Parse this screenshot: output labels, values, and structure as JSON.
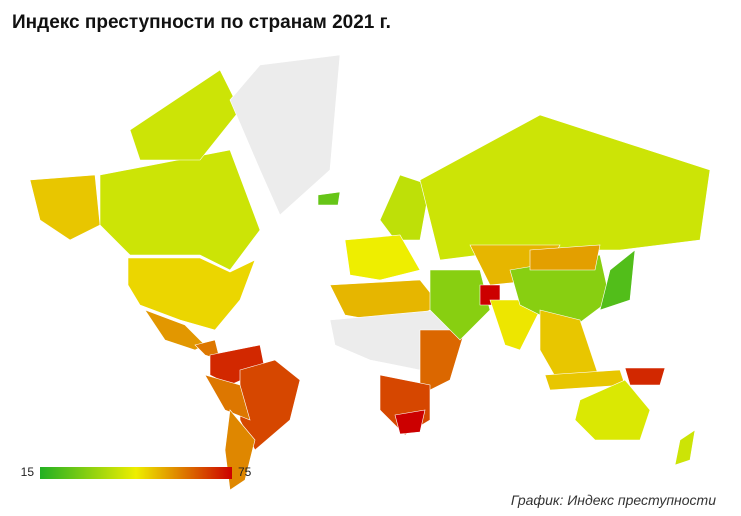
{
  "chart_data": {
    "type": "choropleth",
    "title": "Индекс преступности по странам 2021 г.",
    "caption": "График: Индекс преступности",
    "scale": {
      "min": 15,
      "max": 75,
      "colors": [
        "#22b022",
        "#eeee00",
        "#cc0000"
      ]
    },
    "no_data_color": "#ececec",
    "values": [
      50,
      40,
      40,
      48,
      56,
      60,
      70,
      66,
      60,
      58,
      null,
      25,
      38,
      45,
      40,
      52,
      null,
      62,
      66,
      75,
      30,
      52,
      75,
      46,
      30,
      55,
      22,
      50,
      50,
      70,
      42,
      40
    ]
  }
}
